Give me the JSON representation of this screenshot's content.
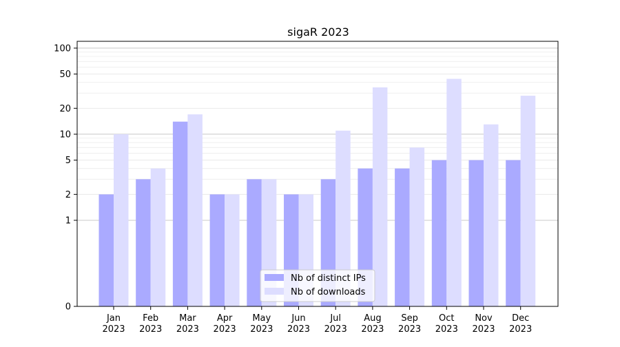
{
  "chart_data": {
    "type": "bar",
    "title": "sigaR 2023",
    "xlabel": "",
    "ylabel": "",
    "y_scale": "symlog",
    "ylim": [
      0,
      120
    ],
    "y_ticks": [
      0,
      1,
      2,
      5,
      10,
      20,
      50,
      100
    ],
    "y_tick_labels": [
      "0",
      "1",
      "2",
      "5",
      "10",
      "20",
      "50",
      "100"
    ],
    "grid": true,
    "legend_position": "bottom-center",
    "categories": [
      {
        "month": "Jan",
        "year": "2023"
      },
      {
        "month": "Feb",
        "year": "2023"
      },
      {
        "month": "Mar",
        "year": "2023"
      },
      {
        "month": "Apr",
        "year": "2023"
      },
      {
        "month": "May",
        "year": "2023"
      },
      {
        "month": "Jun",
        "year": "2023"
      },
      {
        "month": "Jul",
        "year": "2023"
      },
      {
        "month": "Aug",
        "year": "2023"
      },
      {
        "month": "Sep",
        "year": "2023"
      },
      {
        "month": "Oct",
        "year": "2023"
      },
      {
        "month": "Nov",
        "year": "2023"
      },
      {
        "month": "Dec",
        "year": "2023"
      }
    ],
    "series": [
      {
        "name": "Nb of distinct IPs",
        "color": "#aaaaff",
        "values": [
          2,
          3,
          14,
          2,
          3,
          2,
          3,
          4,
          4,
          5,
          5,
          5
        ]
      },
      {
        "name": "Nb of downloads",
        "color": "#ddddff",
        "values": [
          10,
          4,
          17,
          2,
          3,
          2,
          11,
          35,
          7,
          44,
          13,
          28
        ]
      }
    ]
  }
}
